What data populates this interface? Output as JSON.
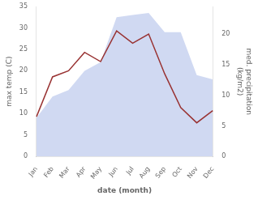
{
  "chart_data": {
    "type": "line",
    "categories": [
      "Jan",
      "Feb",
      "Mar",
      "Apr",
      "May",
      "Jun",
      "Jul",
      "Aug",
      "Sep",
      "Oct",
      "Nov",
      "Dec"
    ],
    "xlabel": "date (month)",
    "ylabel": "max temp (C)",
    "y2label": "med. precipitation\n(kg/m2)",
    "series": [
      {
        "type": "area",
        "color": "#c0ccee",
        "values": [
          9.0,
          14.0,
          15.5,
          20.0,
          22.0,
          32.5,
          33.0,
          33.5,
          29.0,
          29.0,
          19.0,
          18.0
        ]
      },
      {
        "type": "line",
        "color": "#993333",
        "axis": "y2",
        "values": [
          6.5,
          13.0,
          14.0,
          17.0,
          15.5,
          20.5,
          18.5,
          20.0,
          13.5,
          8.0,
          5.5,
          7.5
        ]
      }
    ],
    "ylim": [
      0,
      35
    ],
    "yticks": [
      0,
      5,
      10,
      15,
      20,
      25,
      30,
      35
    ],
    "y2lim": [
      0,
      24.5
    ],
    "y2ticks": [
      0,
      5,
      10,
      15,
      20
    ],
    "grid": false
  }
}
